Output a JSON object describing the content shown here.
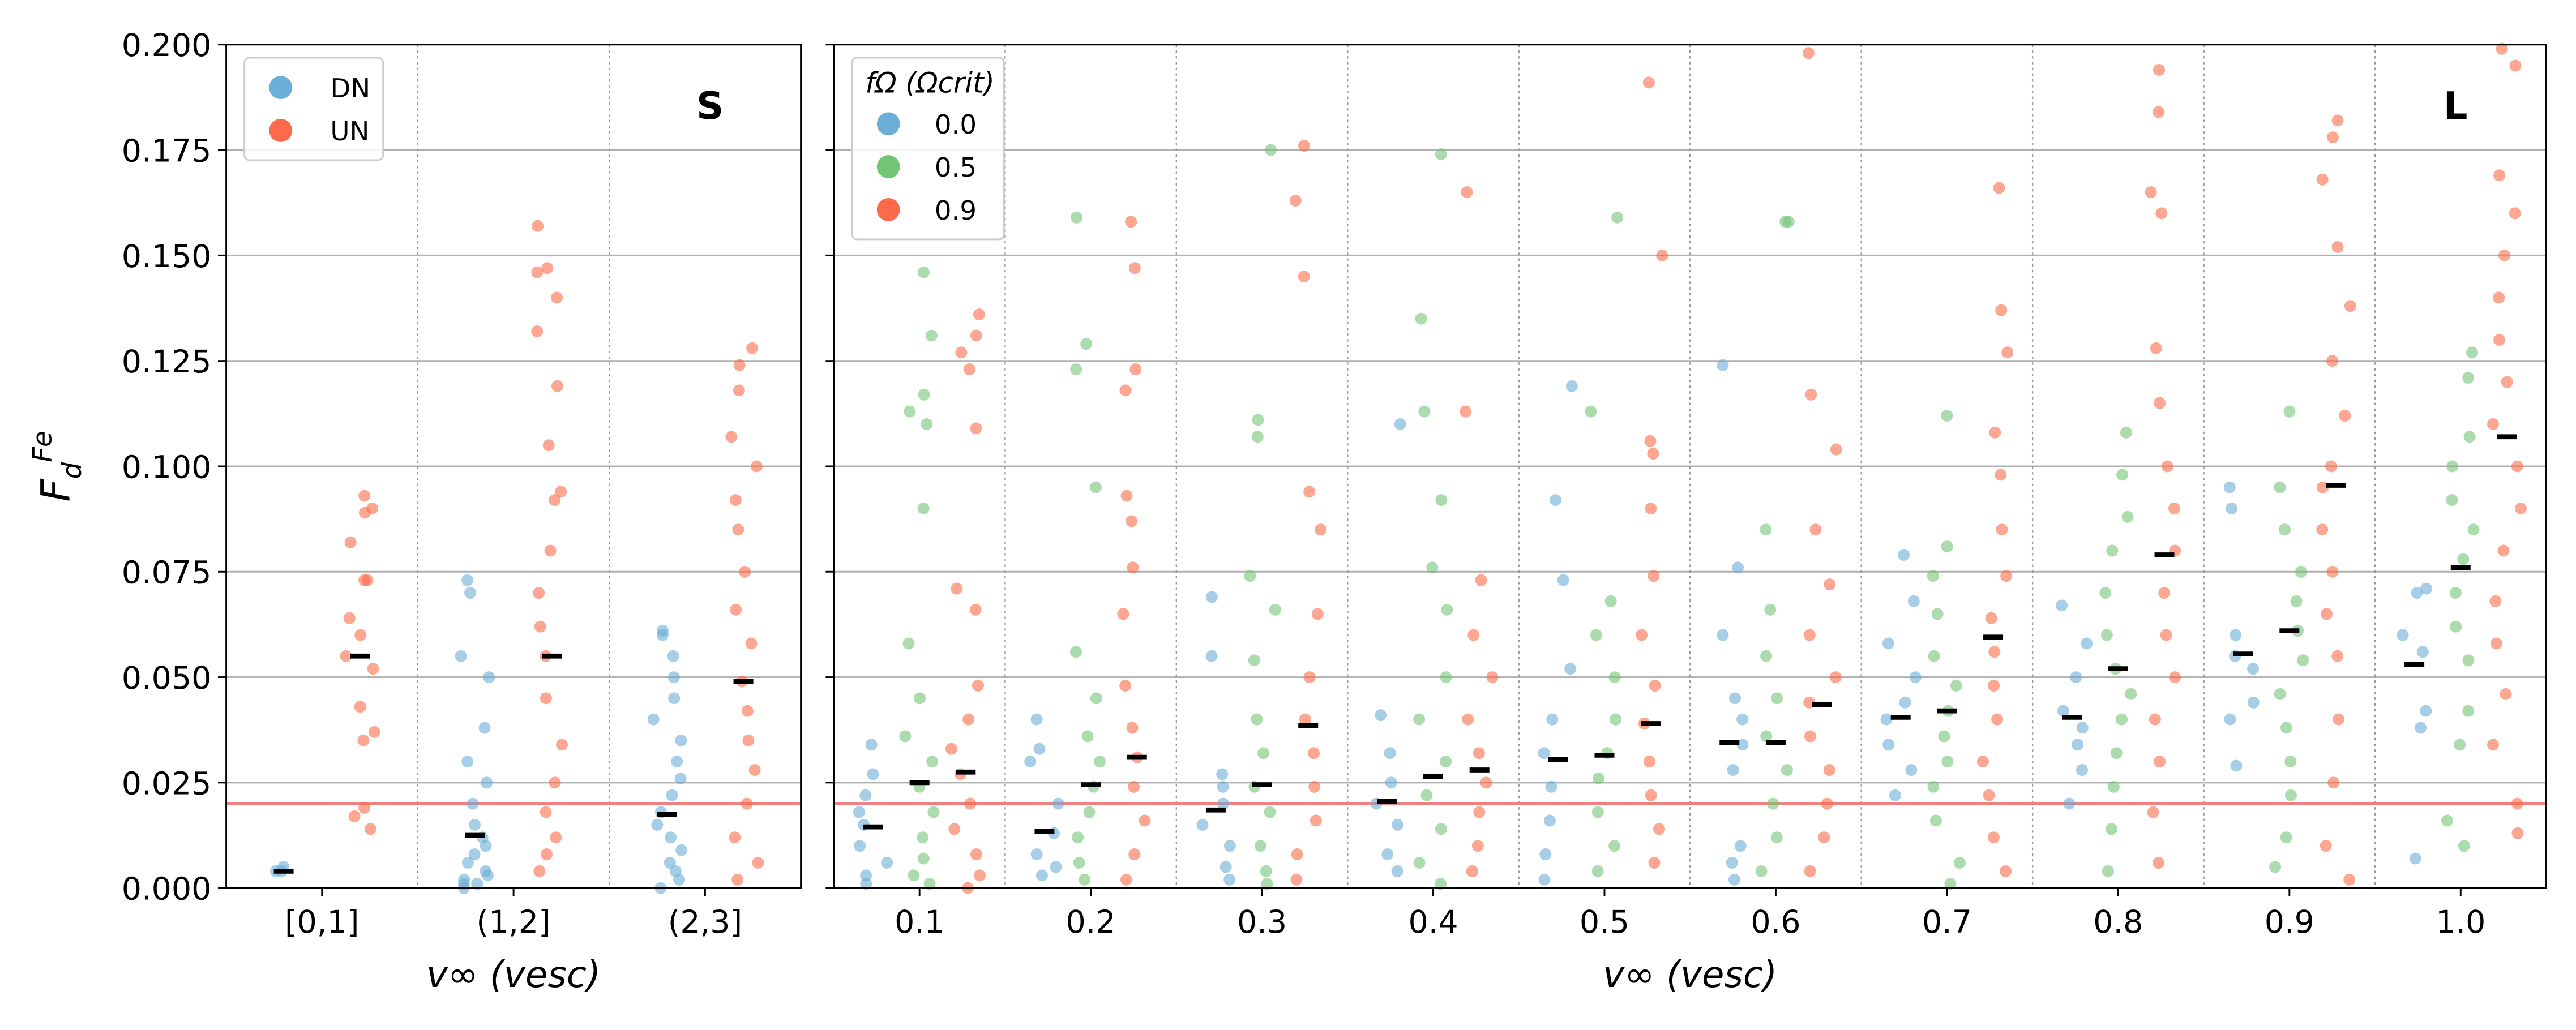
{
  "chart_data": [
    {
      "type": "strip",
      "panel_label": "S",
      "xlabel": "v∞ (vesc)",
      "ylabel": {
        "base": "F",
        "sub": "d",
        "sup": "Fe"
      },
      "categories": [
        "[0,1]",
        "(1,2]",
        "(2,3]"
      ],
      "ylim": [
        0,
        0.2
      ],
      "yticks": [
        {
          "value": 0,
          "label": "0.000"
        },
        {
          "value": 0.025,
          "label": "0.025"
        },
        {
          "value": 0.05,
          "label": "0.050"
        },
        {
          "value": 0.075,
          "label": "0.075"
        },
        {
          "value": 0.1,
          "label": "0.100"
        },
        {
          "value": 0.125,
          "label": "0.125"
        },
        {
          "value": 0.15,
          "label": "0.150"
        },
        {
          "value": 0.175,
          "label": "0.175"
        },
        {
          "value": 0.2,
          "label": "0.200"
        }
      ],
      "grid": true,
      "reference_line": 0.02,
      "reference_color": "#f08080",
      "legend": "upper left",
      "series": [
        {
          "name": "DN",
          "color": "#6baed6",
          "values": [
            [
              0.004,
              0.005,
              0.004
            ],
            [
              0.073,
              0.07,
              0.055,
              0.05,
              0.038,
              0.03,
              0.025,
              0.02,
              0.015,
              0.012,
              0.01,
              0.008,
              0.006,
              0.004,
              0.003,
              0.002,
              0.001,
              0.001,
              0.0
            ],
            [
              0.061,
              0.06,
              0.055,
              0.05,
              0.045,
              0.04,
              0.035,
              0.03,
              0.026,
              0.022,
              0.018,
              0.015,
              0.012,
              0.009,
              0.006,
              0.004,
              0.002,
              0.0
            ]
          ],
          "medians": [
            0.004,
            0.0125,
            0.0175
          ]
        },
        {
          "name": "UN",
          "color": "#fb6a4a",
          "values": [
            [
              0.093,
              0.09,
              0.089,
              0.082,
              0.073,
              0.073,
              0.064,
              0.06,
              0.055,
              0.052,
              0.043,
              0.037,
              0.035,
              0.019,
              0.017,
              0.014
            ],
            [
              0.157,
              0.147,
              0.146,
              0.14,
              0.132,
              0.119,
              0.105,
              0.094,
              0.092,
              0.08,
              0.07,
              0.062,
              0.055,
              0.045,
              0.034,
              0.025,
              0.018,
              0.012,
              0.008,
              0.004
            ],
            [
              0.128,
              0.124,
              0.118,
              0.107,
              0.1,
              0.092,
              0.085,
              0.075,
              0.066,
              0.058,
              0.049,
              0.042,
              0.035,
              0.028,
              0.02,
              0.012,
              0.006,
              0.002
            ]
          ],
          "medians": [
            0.055,
            0.055,
            0.049
          ]
        }
      ]
    },
    {
      "type": "strip",
      "panel_label": "L",
      "xlabel": "v∞ (vesc)",
      "categories": [
        "0.1",
        "0.2",
        "0.3",
        "0.4",
        "0.5",
        "0.6",
        "0.7",
        "0.8",
        "0.9",
        "1.0"
      ],
      "ylim": [
        0,
        0.2
      ],
      "yticks": [
        0,
        0.025,
        0.05,
        0.075,
        0.1,
        0.125,
        0.15,
        0.175,
        0.2
      ],
      "grid": true,
      "reference_line": 0.02,
      "reference_color": "#f08080",
      "legend": "upper left",
      "legend_title": "fΩ (Ωcrit)",
      "series": [
        {
          "name": "0.0",
          "color": "#6baed6",
          "values": [
            [
              0.034,
              0.027,
              0.022,
              0.018,
              0.015,
              0.01,
              0.006,
              0.003,
              0.001
            ],
            [
              0.04,
              0.033,
              0.03,
              0.02,
              0.013,
              0.008,
              0.005,
              0.003
            ],
            [
              0.069,
              0.055,
              0.027,
              0.024,
              0.02,
              0.015,
              0.01,
              0.005,
              0.002
            ],
            [
              0.11,
              0.041,
              0.032,
              0.025,
              0.02,
              0.015,
              0.008,
              0.004
            ],
            [
              0.119,
              0.092,
              0.073,
              0.052,
              0.04,
              0.032,
              0.024,
              0.016,
              0.008,
              0.002
            ],
            [
              0.124,
              0.076,
              0.06,
              0.045,
              0.04,
              0.034,
              0.028,
              0.01,
              0.006,
              0.002
            ],
            [
              0.079,
              0.068,
              0.058,
              0.05,
              0.044,
              0.04,
              0.034,
              0.028,
              0.022
            ],
            [
              0.067,
              0.058,
              0.05,
              0.042,
              0.038,
              0.034,
              0.028,
              0.02
            ],
            [
              0.095,
              0.09,
              0.06,
              0.055,
              0.052,
              0.044,
              0.04,
              0.029
            ],
            [
              0.071,
              0.07,
              0.06,
              0.056,
              0.042,
              0.038,
              0.007
            ]
          ],
          "medians": [
            0.0145,
            0.0135,
            0.0185,
            0.0205,
            0.0305,
            0.0345,
            0.0405,
            0.0405,
            0.0555,
            0.053
          ]
        },
        {
          "name": "0.5",
          "color": "#74c476",
          "values": [
            [
              0.146,
              0.131,
              0.117,
              0.113,
              0.11,
              0.09,
              0.058,
              0.045,
              0.036,
              0.03,
              0.024,
              0.018,
              0.012,
              0.007,
              0.003,
              0.001
            ],
            [
              0.159,
              0.129,
              0.123,
              0.095,
              0.056,
              0.045,
              0.036,
              0.03,
              0.024,
              0.018,
              0.012,
              0.006,
              0.002
            ],
            [
              0.175,
              0.111,
              0.107,
              0.074,
              0.066,
              0.054,
              0.04,
              0.032,
              0.024,
              0.018,
              0.01,
              0.004,
              0.001
            ],
            [
              0.174,
              0.135,
              0.113,
              0.092,
              0.076,
              0.066,
              0.05,
              0.04,
              0.03,
              0.022,
              0.014,
              0.006,
              0.001
            ],
            [
              0.159,
              0.113,
              0.068,
              0.06,
              0.05,
              0.04,
              0.032,
              0.026,
              0.018,
              0.01,
              0.004
            ],
            [
              0.158,
              0.158,
              0.085,
              0.066,
              0.055,
              0.045,
              0.036,
              0.028,
              0.02,
              0.012,
              0.004
            ],
            [
              0.112,
              0.081,
              0.074,
              0.065,
              0.055,
              0.048,
              0.042,
              0.036,
              0.03,
              0.024,
              0.016,
              0.006,
              0.001
            ],
            [
              0.108,
              0.098,
              0.088,
              0.08,
              0.07,
              0.06,
              0.052,
              0.046,
              0.04,
              0.032,
              0.024,
              0.014,
              0.004
            ],
            [
              0.113,
              0.095,
              0.085,
              0.075,
              0.068,
              0.061,
              0.054,
              0.046,
              0.038,
              0.03,
              0.022,
              0.012,
              0.005
            ],
            [
              0.127,
              0.121,
              0.107,
              0.1,
              0.092,
              0.085,
              0.078,
              0.07,
              0.062,
              0.054,
              0.042,
              0.034,
              0.016,
              0.01
            ]
          ],
          "medians": [
            0.025,
            0.0245,
            0.0245,
            0.0265,
            0.0315,
            0.0345,
            0.042,
            0.052,
            0.061,
            0.076
          ]
        },
        {
          "name": "0.9",
          "color": "#fb6a4a",
          "values": [
            [
              0.136,
              0.131,
              0.127,
              0.123,
              0.109,
              0.071,
              0.066,
              0.048,
              0.04,
              0.033,
              0.027,
              0.02,
              0.014,
              0.008,
              0.003,
              0.0
            ],
            [
              0.158,
              0.147,
              0.123,
              0.118,
              0.093,
              0.087,
              0.076,
              0.065,
              0.048,
              0.038,
              0.031,
              0.024,
              0.016,
              0.008,
              0.002
            ],
            [
              0.176,
              0.163,
              0.145,
              0.094,
              0.085,
              0.065,
              0.05,
              0.04,
              0.032,
              0.024,
              0.016,
              0.008,
              0.002
            ],
            [
              0.165,
              0.113,
              0.073,
              0.06,
              0.05,
              0.04,
              0.032,
              0.025,
              0.018,
              0.01,
              0.004
            ],
            [
              0.191,
              0.15,
              0.106,
              0.103,
              0.09,
              0.074,
              0.06,
              0.048,
              0.039,
              0.03,
              0.022,
              0.014,
              0.006
            ],
            [
              0.198,
              0.117,
              0.104,
              0.085,
              0.072,
              0.06,
              0.05,
              0.044,
              0.036,
              0.028,
              0.02,
              0.012,
              0.004
            ],
            [
              0.166,
              0.137,
              0.127,
              0.108,
              0.098,
              0.085,
              0.074,
              0.064,
              0.056,
              0.048,
              0.04,
              0.03,
              0.022,
              0.012,
              0.004
            ],
            [
              0.194,
              0.184,
              0.165,
              0.16,
              0.128,
              0.115,
              0.1,
              0.09,
              0.08,
              0.07,
              0.06,
              0.05,
              0.04,
              0.03,
              0.018,
              0.006
            ],
            [
              0.182,
              0.178,
              0.168,
              0.152,
              0.138,
              0.125,
              0.112,
              0.1,
              0.095,
              0.085,
              0.075,
              0.065,
              0.055,
              0.04,
              0.025,
              0.01,
              0.002
            ],
            [
              0.199,
              0.195,
              0.169,
              0.16,
              0.15,
              0.14,
              0.13,
              0.12,
              0.11,
              0.1,
              0.09,
              0.08,
              0.068,
              0.058,
              0.046,
              0.034,
              0.02,
              0.013
            ]
          ],
          "medians": [
            0.0275,
            0.031,
            0.0385,
            0.028,
            0.039,
            0.0435,
            0.0595,
            0.079,
            0.0955,
            0.107
          ]
        }
      ]
    }
  ]
}
